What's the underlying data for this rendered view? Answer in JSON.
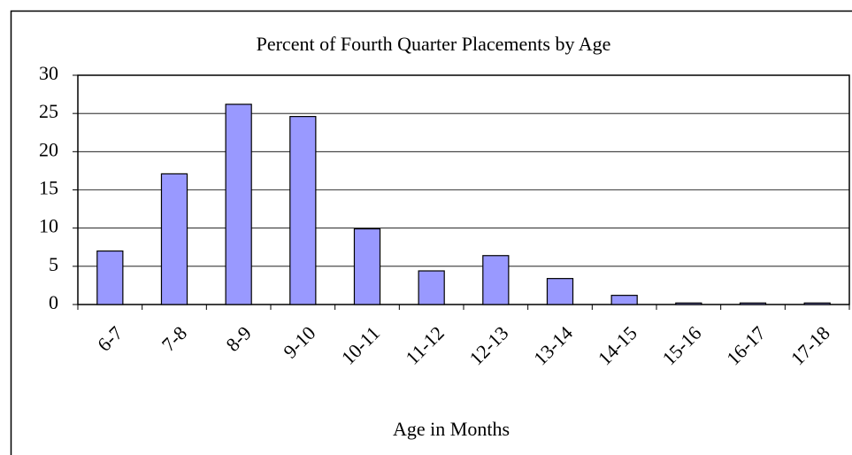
{
  "chart_data": {
    "type": "bar",
    "title": "Percent of Fourth Quarter Placements by Age",
    "x_label": "Age in Months",
    "categories": [
      "6-7",
      "7-8",
      "8-9",
      "9-10",
      "10-11",
      "11-12",
      "12-13",
      "13-14",
      "14-15",
      "15-16",
      "16-17",
      "17-18"
    ],
    "values": [
      7,
      17.1,
      26.2,
      24.6,
      9.9,
      4.4,
      6.4,
      3.4,
      1.2,
      0.2,
      0.2,
      0.2
    ],
    "color": "#9999ff",
    "ylim": [
      0,
      30
    ],
    "yticks": [
      0,
      5,
      10,
      15,
      20,
      25,
      30
    ],
    "grid": true
  }
}
